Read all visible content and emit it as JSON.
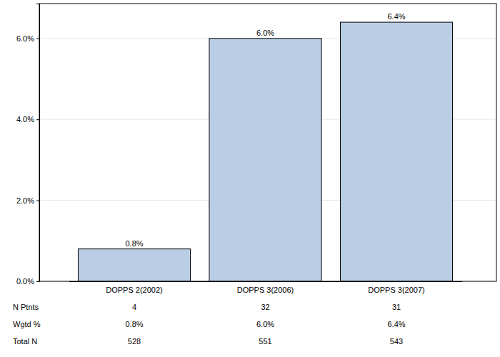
{
  "chart_data": {
    "type": "bar",
    "categories": [
      "DOPPS 2(2002)",
      "DOPPS 3(2006)",
      "DOPPS 3(2007)"
    ],
    "values": [
      0.8,
      6.0,
      6.4
    ],
    "value_labels": [
      "0.8%",
      "6.0%",
      "6.4%"
    ],
    "data_labels": true,
    "color": "#b9cde5",
    "ylim": [
      0,
      6.86
    ],
    "yticks": [
      {
        "value": 0,
        "label": "0.0%"
      },
      {
        "value": 2,
        "label": "2.0%"
      },
      {
        "value": 4,
        "label": "4.0%"
      },
      {
        "value": 6,
        "label": "6.0%"
      }
    ],
    "grid": true,
    "table": {
      "rows": [
        {
          "label": "N Ptnts",
          "cells": [
            4,
            32,
            31
          ]
        },
        {
          "label": "Wgtd %",
          "cells": [
            "0.8%",
            "6.0%",
            "6.4%"
          ]
        },
        {
          "label": "Total N",
          "cells": [
            528,
            551,
            543
          ]
        }
      ]
    }
  }
}
